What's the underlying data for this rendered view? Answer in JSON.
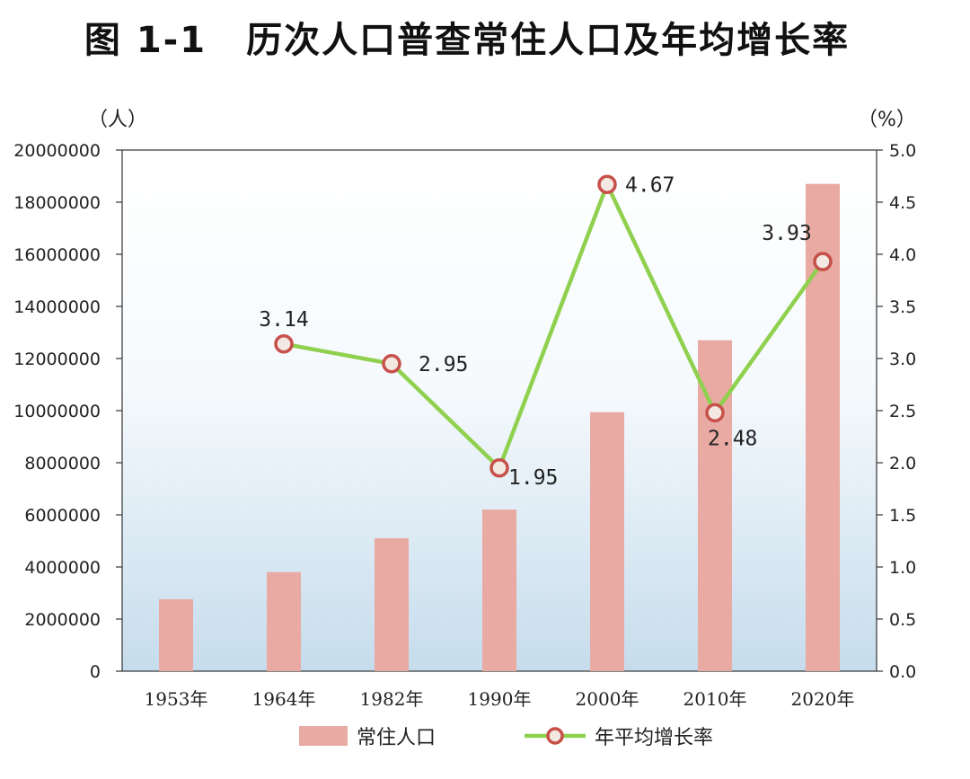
{
  "figure": {
    "number": "图 1-1",
    "caption": "历次人口普查常住人口及年均增长率"
  },
  "chart_data": {
    "type": "bar",
    "categories": [
      "1953年",
      "1964年",
      "1982年",
      "1990年",
      "2000年",
      "2010年",
      "2020年"
    ],
    "series": [
      {
        "name": "常住人口",
        "type": "bar",
        "axis": "left",
        "color": "#e8aaa2",
        "values": [
          2760000,
          3800000,
          5100000,
          6200000,
          9940000,
          12700000,
          18700000
        ]
      },
      {
        "name": "年平均增长率",
        "type": "line",
        "axis": "right",
        "color": "#8fd14f",
        "marker_color": "#c8504a",
        "values": [
          null,
          3.14,
          2.95,
          1.95,
          4.67,
          2.48,
          3.93
        ],
        "labels": [
          "",
          "3.14",
          "2.95",
          "1.95",
          "4.67",
          "2.48",
          "3.93"
        ]
      }
    ],
    "left_axis": {
      "unit": "（人）",
      "ylim": [
        0,
        20000000
      ],
      "ticks": [
        "0",
        "2000000",
        "4000000",
        "6000000",
        "8000000",
        "10000000",
        "12000000",
        "14000000",
        "16000000",
        "18000000",
        "20000000"
      ]
    },
    "right_axis": {
      "unit": "（%）",
      "ylim": [
        0,
        5
      ],
      "ticks": [
        "0.0",
        "0.5",
        "1.0",
        "1.5",
        "2.0",
        "2.5",
        "3.0",
        "3.5",
        "4.0",
        "4.5",
        "5.0"
      ]
    },
    "legend_position": "bottom-center",
    "grid": false,
    "background": "vertical gradient white to light blue"
  }
}
